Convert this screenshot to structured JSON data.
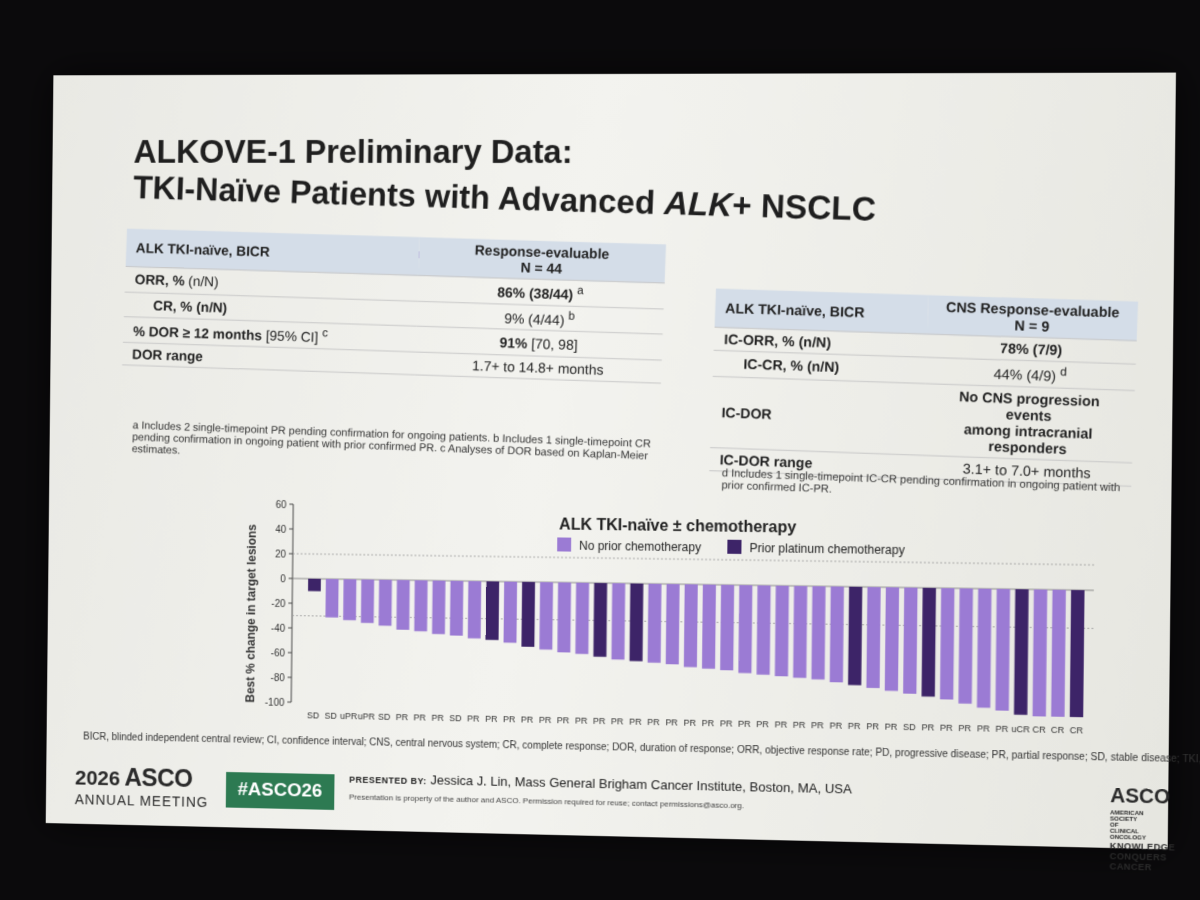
{
  "slide": {
    "title_line1": "ALKOVE-1 Preliminary Data:",
    "title_line2_pre": "TKI-Naïve Patients with Advanced ",
    "title_line2_italic": "ALK",
    "title_line2_post": "+ NSCLC"
  },
  "table_left": {
    "header_label": "ALK TKI-naïve, BICR",
    "header_value_line1": "Response-evaluable",
    "header_value_line2": "N = 44",
    "rows": [
      {
        "label": "ORR, % (n/N)",
        "value": ""
      },
      {
        "label": "CR, % (n/N)",
        "value": "86% (38/44) a / 9% (4/44) b"
      },
      {
        "label": "% DOR ≥ 12 months [95% CI] c",
        "value": "91% [70, 98]"
      },
      {
        "label": "DOR range",
        "value": "1.7+ to 14.8+ months"
      }
    ],
    "orr_value": "86% (38/44)",
    "orr_sup": "a",
    "cr_value": "9% (4/44)",
    "cr_sup": "b",
    "dor12_label": "% DOR ≥ 12 months",
    "dor12_label_ci": "[95% CI]",
    "dor12_sup": "c",
    "dor12_value": "91%",
    "dor12_ci": "[70, 98]",
    "orr_label": "ORR, %",
    "orr_label_n": "(n/N)",
    "cr_label": "CR, % (n/N)",
    "dor_range_label": "DOR range",
    "dor_range_value": "1.7+ to 14.8+ months",
    "footnote": "a Includes 2 single-timepoint PR pending confirmation for ongoing patients. b Includes 1 single-timepoint CR pending confirmation in ongoing patient with prior confirmed PR. c Analyses of DOR based on Kaplan-Meier estimates."
  },
  "table_right": {
    "header_label": "ALK TKI-naïve, BICR",
    "header_value_line1": "CNS Response-evaluable",
    "header_value_line2": "N = 9",
    "icorr_label": "IC-ORR, % (n/N)",
    "icorr_value": "78% (7/9)",
    "iccr_label": "IC-CR, % (n/N)",
    "iccr_value": "44% (4/9)",
    "iccr_sup": "d",
    "icdor_label": "IC-DOR",
    "icdor_value_line1": "No CNS progression events",
    "icdor_value_line2": "among intracranial responders",
    "icdor_range_label": "IC-DOR range",
    "icdor_range_value": "3.1+ to 7.0+ months",
    "footnote": "d Includes 1 single-timepoint IC-CR pending confirmation in ongoing patient with prior confirmed IC-PR."
  },
  "chart_data": {
    "type": "bar",
    "title": "ALK TKI-naïve ± chemotherapy",
    "ylabel": "Best % change in target lesions",
    "xlabel": "",
    "ylim": [
      -100,
      60
    ],
    "yticks": [
      60,
      40,
      20,
      0,
      -20,
      -40,
      -60,
      -80,
      -100
    ],
    "legend": [
      {
        "name": "No prior chemotherapy",
        "color": "#9b7bd4"
      },
      {
        "name": "Prior platinum chemotherapy",
        "color": "#3d2468"
      }
    ],
    "legend_position": "top",
    "categories": [
      "SD",
      "SD",
      "uPR",
      "uPR",
      "SD",
      "PR",
      "PR",
      "PR",
      "SD",
      "PR",
      "PR",
      "PR",
      "PR",
      "PR",
      "PR",
      "PR",
      "PR",
      "PR",
      "PR",
      "PR",
      "PR",
      "PR",
      "PR",
      "PR",
      "PR",
      "PR",
      "PR",
      "PR",
      "PR",
      "PR",
      "PR",
      "PR",
      "PR",
      "SD",
      "PR",
      "PR",
      "PR",
      "PR",
      "PR",
      "uCR",
      "CR",
      "CR",
      "CR"
    ],
    "values": [
      -10,
      -31,
      -33,
      -35,
      -37,
      -40,
      -41,
      -43,
      -44,
      -46,
      -47,
      -49,
      -52,
      -54,
      -56,
      -57,
      -59,
      -61,
      -62,
      -63,
      -64,
      -66,
      -67,
      -68,
      -70,
      -71,
      -72,
      -73,
      -74,
      -76,
      -78,
      -80,
      -82,
      -84,
      -86,
      -88,
      -91,
      -94,
      -96,
      -99,
      -100,
      -100,
      -100
    ],
    "group": [
      "platinum",
      "none",
      "none",
      "none",
      "none",
      "none",
      "none",
      "none",
      "none",
      "none",
      "platinum",
      "none",
      "platinum",
      "none",
      "none",
      "none",
      "platinum",
      "none",
      "platinum",
      "none",
      "none",
      "none",
      "none",
      "none",
      "none",
      "none",
      "none",
      "none",
      "none",
      "none",
      "platinum",
      "none",
      "none",
      "none",
      "platinum",
      "none",
      "none",
      "none",
      "none",
      "platinum",
      "none",
      "none",
      "platinum"
    ],
    "reference_lines": [
      20,
      -30
    ],
    "grid": false
  },
  "footer": {
    "abbreviations": "BICR, blinded independent central review; CI, confidence interval; CNS, central nervous system; CR, complete response; DOR, duration of response; ORR, objective response rate; PD, progressive disease; PR, partial response; SD, stable disease; TKI, tyrosine kinase inhibitor.",
    "meeting_year": "2026",
    "meeting_brand": "ASCO",
    "meeting_name": "ANNUAL MEETING",
    "hashtag": "#ASCO26",
    "presented_by_label": "PRESENTED BY:",
    "presenter": "Jessica J. Lin, Mass General Brigham Cancer Institute, Boston, MA, USA",
    "property_note": "Presentation is property of the author and ASCO. Permission required for reuse; contact permissions@asco.org.",
    "logo_text": "ASCO",
    "logo_small": "AMERICAN SOCIETY OF CLINICAL ONCOLOGY",
    "logo_tagline": "KNOWLEDGE CONQUERS CANCER"
  }
}
